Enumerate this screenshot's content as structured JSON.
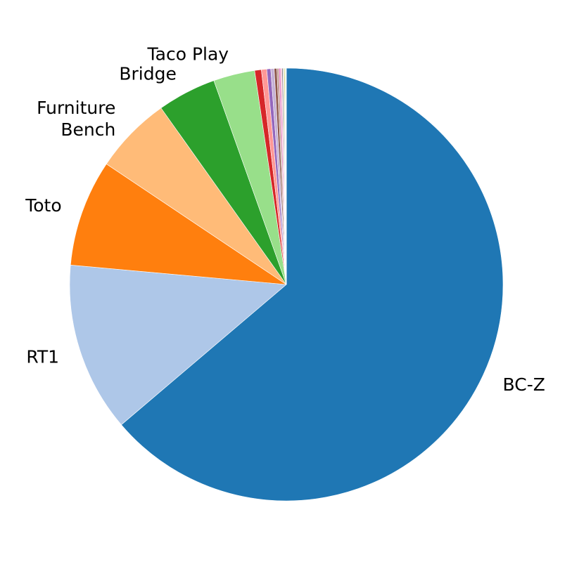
{
  "chart_data": {
    "type": "pie",
    "title": "",
    "start_angle_deg": 90,
    "direction": "clockwise",
    "slices": [
      {
        "label": "BC-Z",
        "value": 64.0,
        "color": "#1f77b4"
      },
      {
        "label": "RT1",
        "value": 12.7,
        "color": "#aec7e8"
      },
      {
        "label": "Toto",
        "value": 8.0,
        "color": "#ff7f0e"
      },
      {
        "label": "Furniture\nBench",
        "value": 5.8,
        "color": "#ffbb78"
      },
      {
        "label": "Bridge",
        "value": 4.4,
        "color": "#2ca02c"
      },
      {
        "label": "Taco Play",
        "value": 3.1,
        "color": "#98df8a"
      },
      {
        "label": "",
        "value": 0.5,
        "color": "#d62728"
      },
      {
        "label": "",
        "value": 0.4,
        "color": "#ff9896"
      },
      {
        "label": "",
        "value": 0.3,
        "color": "#9467bd"
      },
      {
        "label": "",
        "value": 0.25,
        "color": "#c5b0d5"
      },
      {
        "label": "",
        "value": 0.2,
        "color": "#8c564b"
      },
      {
        "label": "",
        "value": 0.15,
        "color": "#c49c94"
      },
      {
        "label": "",
        "value": 0.12,
        "color": "#e377c2"
      },
      {
        "label": "",
        "value": 0.1,
        "color": "#f7b6d2"
      },
      {
        "label": "",
        "value": 0.08,
        "color": "#7f7f7f"
      },
      {
        "label": "",
        "value": 0.07,
        "color": "#c7c7c7"
      },
      {
        "label": "",
        "value": 0.06,
        "color": "#bcbd22"
      },
      {
        "label": "",
        "value": 0.05,
        "color": "#dbdb8d"
      },
      {
        "label": "",
        "value": 0.04,
        "color": "#17becf"
      },
      {
        "label": "",
        "value": 0.03,
        "color": "#9edae5"
      }
    ]
  }
}
